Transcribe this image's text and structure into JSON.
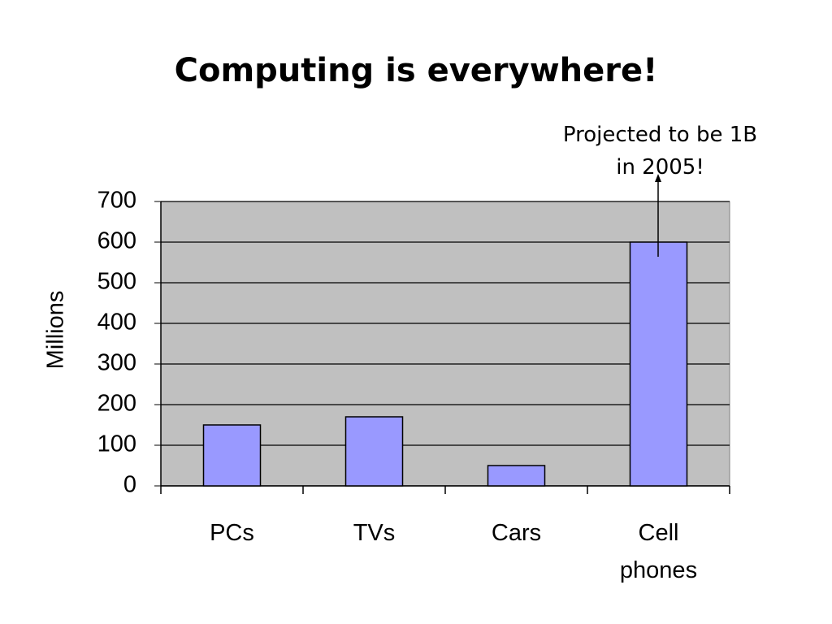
{
  "chart_data": {
    "type": "bar",
    "title": "Computing is everywhere!",
    "y_label": "Millions",
    "annotation": "Projected to be 1B in 2005!",
    "categories": [
      "PCs",
      "TVs",
      "Cars",
      "Cell phones"
    ],
    "values": [
      150,
      170,
      50,
      600
    ],
    "color": "#9999ff",
    "ylim": [
      0,
      700
    ],
    "yticks": [
      0,
      100,
      200,
      300,
      400,
      500,
      600,
      700
    ],
    "grid": true
  }
}
